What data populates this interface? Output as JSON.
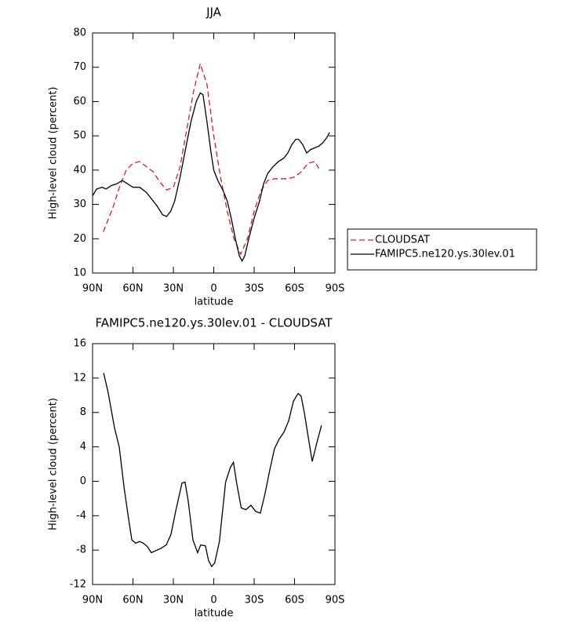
{
  "chart_data": [
    {
      "type": "line",
      "title": "JJA",
      "xlabel": "latitude",
      "ylabel": "High-level cloud (percent)",
      "xlim": [
        90,
        -90
      ],
      "xticks": [
        {
          "value": 90,
          "label": "90N"
        },
        {
          "value": 60,
          "label": "60N"
        },
        {
          "value": 30,
          "label": "30N"
        },
        0,
        {
          "value": -30,
          "label": "30S"
        },
        {
          "value": -60,
          "label": "60S"
        },
        {
          "value": -90,
          "label": "90S"
        }
      ],
      "ylim": [
        10,
        80
      ],
      "yticks": [
        10,
        20,
        30,
        40,
        50,
        60,
        70,
        80
      ],
      "legend": "right",
      "series": [
        {
          "name": "CLOUDSAT",
          "color": "#e41a1c",
          "style": "dashed",
          "x": [
            82,
            75,
            70,
            65,
            60,
            55,
            50,
            45,
            40,
            35,
            30,
            25,
            20,
            15,
            10,
            5,
            0,
            -5,
            -10,
            -15,
            -20,
            -25,
            -30,
            -35,
            -40,
            -45,
            -50,
            -55,
            -60,
            -65,
            -70,
            -75,
            -78
          ],
          "values": [
            22,
            29,
            35,
            40,
            42,
            42.5,
            41,
            39.5,
            36.5,
            34.2,
            35,
            41,
            52,
            63,
            71,
            65,
            50,
            38,
            28,
            20,
            15.5,
            20,
            28,
            34,
            37,
            37.5,
            37.5,
            37.5,
            38,
            39.5,
            42,
            42.5,
            40.5
          ]
        },
        {
          "name": "FAMIPC5.ne120.ys.30lev.01",
          "color": "#000000",
          "style": "solid",
          "x": [
            90,
            87,
            83,
            80,
            76,
            72,
            68,
            64,
            60,
            55,
            50,
            46,
            42,
            38,
            35,
            32,
            29,
            25,
            21,
            17,
            13,
            10,
            8,
            5,
            2,
            0,
            -3,
            -7,
            -10,
            -13,
            -16,
            -19,
            -21,
            -23,
            -26,
            -30,
            -34,
            -37,
            -40,
            -44,
            -48,
            -52,
            -55,
            -58,
            -61,
            -63,
            -66,
            -69,
            -72,
            -75,
            -78,
            -81,
            -84,
            -86
          ],
          "values": [
            32.5,
            34.5,
            35,
            34.5,
            35.5,
            36,
            37,
            36,
            35,
            35,
            33.5,
            31.5,
            29.5,
            27,
            26.5,
            28,
            31,
            38,
            46,
            54,
            60,
            62.5,
            62,
            54,
            45,
            40,
            37,
            34,
            31,
            26,
            20,
            15,
            13.5,
            15,
            20,
            26,
            31,
            36,
            39,
            41,
            42.5,
            43.5,
            45,
            47.5,
            49,
            49,
            47.5,
            45,
            46,
            46.5,
            47,
            48,
            49.5,
            51
          ]
        }
      ]
    },
    {
      "type": "line",
      "title": "FAMIPC5.ne120.ys.30lev.01 - CLOUDSAT",
      "xlabel": "latitude",
      "ylabel": "High-level cloud (percent)",
      "xlim": [
        90,
        -90
      ],
      "xticks": [
        {
          "value": 90,
          "label": "90N"
        },
        {
          "value": 60,
          "label": "60N"
        },
        {
          "value": 30,
          "label": "30N"
        },
        0,
        {
          "value": -30,
          "label": "30S"
        },
        {
          "value": -60,
          "label": "60S"
        },
        {
          "value": -90,
          "label": "90S"
        }
      ],
      "ylim": [
        -12,
        16
      ],
      "yticks": [
        -12,
        -8,
        -4,
        0,
        4,
        8,
        12,
        16
      ],
      "series": [
        {
          "color": "#000000",
          "style": "solid",
          "x": [
            81.8,
            78.4,
            73.7,
            70.2,
            66.7,
            63.8,
            60.9,
            58.0,
            55.1,
            52.2,
            49.3,
            46.4,
            43.4,
            39.3,
            35.3,
            31.8,
            28.3,
            23.6,
            21.3,
            18.9,
            15.5,
            12.0,
            9.7,
            6.2,
            3.9,
            1.6,
            -0.7,
            -4.2,
            -8.8,
            -12.3,
            -14.6,
            -16.9,
            -20.4,
            -23.9,
            -27.6,
            -31.1,
            -34.6,
            -38.0,
            -41.6,
            -45.1,
            -48.6,
            -52.1,
            -55.6,
            -59.1,
            -62.6,
            -64.9,
            -67.2,
            -70.7,
            -73.1,
            -76.6,
            -80.0
          ],
          "values": [
            12.6,
            10.3,
            6.2,
            4.0,
            -0.6,
            -3.8,
            -6.8,
            -7.2,
            -7.0,
            -7.2,
            -7.6,
            -8.3,
            -8.1,
            -7.8,
            -7.4,
            -6.2,
            -3.5,
            -0.2,
            -0.1,
            -2.4,
            -6.8,
            -8.3,
            -7.4,
            -7.5,
            -9.2,
            -9.9,
            -9.5,
            -7.0,
            -0.1,
            1.6,
            2.2,
            -0.1,
            -3.1,
            -3.3,
            -2.8,
            -3.5,
            -3.7,
            -1.5,
            1.3,
            3.8,
            4.9,
            5.7,
            7.0,
            9.3,
            10.2,
            9.9,
            8.0,
            4.6,
            2.3,
            4.5,
            6.5
          ]
        }
      ]
    }
  ]
}
